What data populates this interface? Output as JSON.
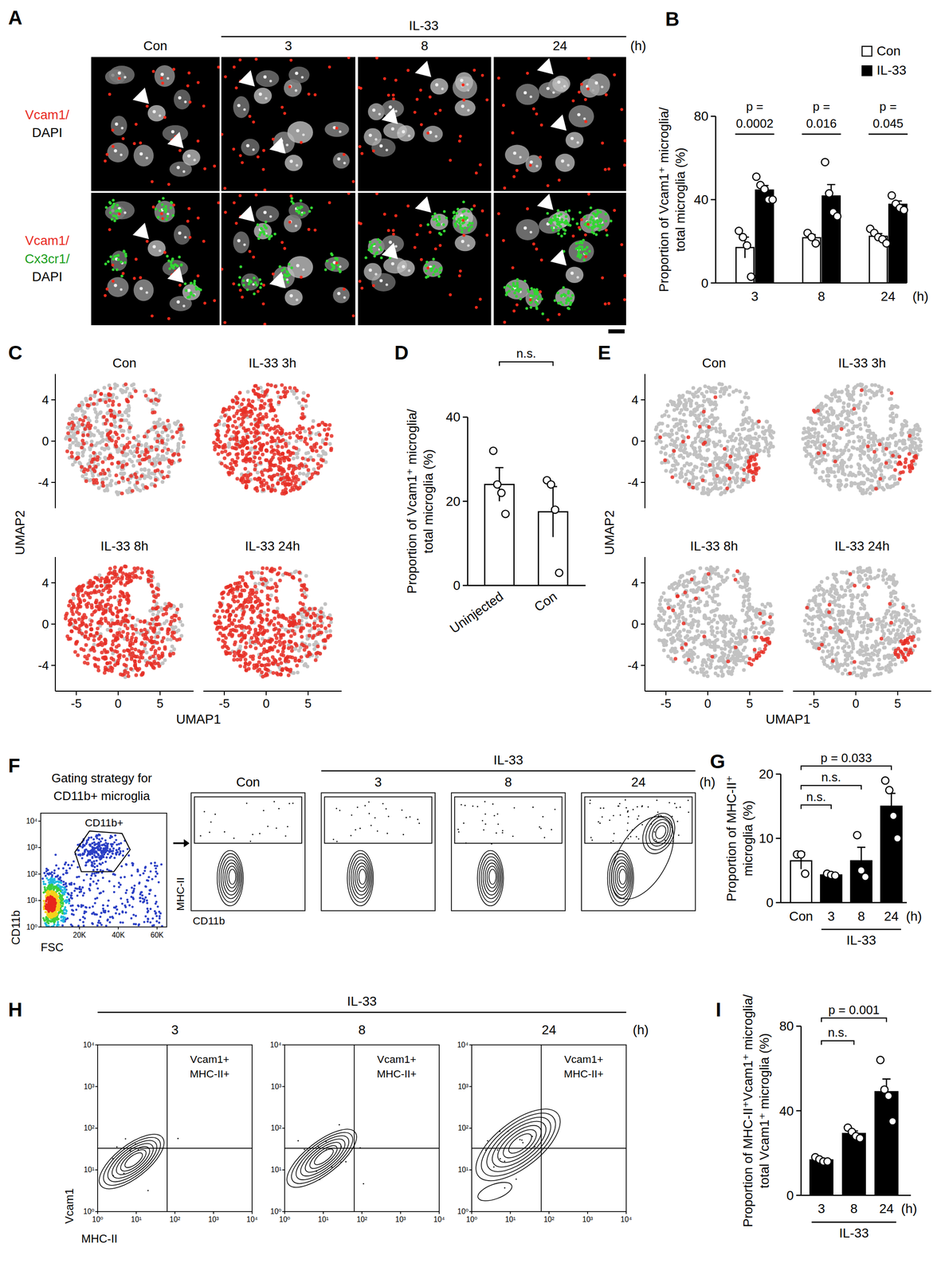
{
  "panel_letters": [
    "A",
    "B",
    "C",
    "D",
    "E",
    "F",
    "G",
    "H",
    "I"
  ],
  "chart_data": [
    {
      "type": "bar",
      "panel": "B",
      "categories": [
        "3",
        "8",
        "24"
      ],
      "unit": "(h)",
      "ylabel": "Proportion of Vcam1⁺ microglia/ total microglia (%)",
      "ylim": [
        0,
        80
      ],
      "yticks": [
        0,
        40,
        80
      ],
      "legend": "top-right",
      "series": [
        {
          "name": "Con",
          "color": "#ffffff",
          "values": [
            17,
            21.7,
            22.4
          ],
          "errors": [
            5,
            1.5,
            1.3
          ],
          "points": [
            [
              25,
              22,
              18,
              3
            ],
            [
              24,
              22,
              19
            ],
            [
              26,
              24,
              22,
              21,
              19
            ]
          ]
        },
        {
          "name": "IL-33",
          "color": "#000000",
          "values": [
            44.6,
            41.75,
            37.75
          ],
          "errors": [
            2.2,
            5.5,
            1.6
          ],
          "points": [
            [
              51,
              47,
              45,
              40,
              40
            ],
            [
              58,
              43,
              34,
              32
            ],
            [
              42,
              38,
              36,
              35
            ]
          ]
        }
      ],
      "annotations": [
        {
          "text": "p = 0.0002",
          "category": "3"
        },
        {
          "text": "p = 0.016",
          "category": "8"
        },
        {
          "text": "p = 0.045",
          "category": "24"
        }
      ]
    },
    {
      "type": "bar",
      "panel": "D",
      "categories": [
        "Uninjected",
        "Con"
      ],
      "ylabel": "Proportion of Vcam1⁺ microglia/ total microglia (%)",
      "ylim": [
        0,
        40
      ],
      "yticks": [
        0,
        20,
        40
      ],
      "colors": [
        "#ffffff",
        "#ffffff"
      ],
      "values": [
        24,
        17.5
      ],
      "errors": [
        4,
        6
      ],
      "points": [
        [
          32,
          24,
          22,
          17
        ],
        [
          25,
          24,
          18,
          3
        ]
      ],
      "annotations": [
        {
          "text": "n.s.",
          "from": "Uninjected",
          "to": "Con"
        }
      ]
    },
    {
      "type": "bar",
      "panel": "G",
      "categories": [
        "Con",
        "3",
        "8",
        "24"
      ],
      "group": {
        "label": "IL-33",
        "from": "3",
        "to": "24"
      },
      "unit": "(h)",
      "ylabel": "Proportion of MHC-II⁺ microglia (%)",
      "ylim": [
        0,
        20
      ],
      "yticks": [
        0,
        10,
        20
      ],
      "colors": [
        "#ffffff",
        "#000000",
        "#000000",
        "#000000"
      ],
      "values": [
        6.5,
        4.3,
        6.5,
        15
      ],
      "errors": [
        1.3,
        0.15,
        2.1,
        2
      ],
      "points": [
        [
          7.5,
          7.5,
          4.5
        ],
        [
          4.5,
          4.3,
          4.2
        ],
        [
          10.5,
          5,
          4
        ],
        [
          19,
          17.5,
          13.5,
          10
        ]
      ],
      "annotations": [
        {
          "text": "p = 0.033",
          "from": "Con",
          "to": "24"
        },
        {
          "text": "n.s.",
          "from": "Con",
          "to": "8"
        },
        {
          "text": "n.s.",
          "from": "Con",
          "to": "3"
        }
      ]
    },
    {
      "type": "bar",
      "panel": "I",
      "categories": [
        "3",
        "8",
        "24"
      ],
      "group": {
        "label": "IL-33",
        "from": "3",
        "to": "24"
      },
      "unit": "(h)",
      "ylabel": "Proportion of MHC-II⁺Vcam1⁺ microglia/ total Vcam1⁺ microglia (%)",
      "ylim": [
        0,
        80
      ],
      "yticks": [
        0,
        40,
        80
      ],
      "colors": [
        "#000000",
        "#000000",
        "#000000"
      ],
      "values": [
        16.75,
        29.25,
        49
      ],
      "errors": [
        0.6,
        1.2,
        6
      ],
      "points": [
        [
          18,
          17,
          16,
          16
        ],
        [
          32,
          30,
          28,
          27
        ],
        [
          64,
          50,
          47,
          35
        ]
      ],
      "annotations": [
        {
          "text": "p = 0.001",
          "from": "3",
          "to": "24"
        },
        {
          "text": "n.s.",
          "from": "3",
          "to": "8"
        }
      ]
    }
  ],
  "images": {
    "A": {
      "columns": [
        "Con",
        "3",
        "8",
        "24"
      ],
      "group": "IL-33",
      "unit": "(h)",
      "rows": [
        [
          {
            "text": "Vcam1/",
            "color": "#e8281e"
          },
          {
            "text": "DAPI",
            "color": "#000000"
          }
        ],
        [
          {
            "text": "Vcam1/",
            "color": "#e8281e"
          },
          {
            "text": "Cx3cr1/",
            "color": "#1a9e1a"
          },
          {
            "text": "DAPI",
            "color": "#000000"
          }
        ]
      ]
    },
    "C": {
      "type": "scatter",
      "titles": [
        "Con",
        "IL-33 3h",
        "IL-33 8h",
        "IL-33 24h"
      ],
      "xlabel": "UMAP1",
      "ylabel": "UMAP2",
      "xlim": [
        -7.5,
        9
      ],
      "ylim": [
        -6.5,
        6.5
      ],
      "xticks": [
        -5,
        0,
        5
      ],
      "yticks": [
        -4,
        0,
        4
      ]
    },
    "E": {
      "type": "scatter",
      "titles": [
        "Con",
        "IL-33 3h",
        "IL-33 8h",
        "IL-33 24h"
      ],
      "xlabel": "UMAP1",
      "ylabel": "UMAP2",
      "xlim": [
        -7.5,
        9
      ],
      "ylim": [
        -6.5,
        6.5
      ],
      "xticks": [
        -5,
        0,
        5
      ],
      "yticks": [
        -4,
        0,
        4
      ]
    },
    "F": {
      "title": "Gating strategy for CD11b+ microglia",
      "gate": "CD11b+",
      "xlabel": "FSC",
      "ylabel": "CD11b",
      "xlim": [
        0,
        65000
      ],
      "xticks": [
        {
          "value": 20000,
          "label": "20K"
        },
        {
          "value": 40000,
          "label": "40K"
        },
        {
          "value": 60000,
          "label": "60K"
        }
      ],
      "log": "y",
      "ylim": [
        1,
        20000
      ],
      "yticks": [
        {
          "value": 1,
          "label": "10⁰"
        },
        {
          "value": 10,
          "label": "10¹"
        },
        {
          "value": 100,
          "label": "10²"
        },
        {
          "value": 1000,
          "label": "10³"
        },
        {
          "value": 10000,
          "label": "10⁴"
        }
      ],
      "columns": [
        "Con",
        "3",
        "8",
        "24"
      ],
      "group": "IL-33",
      "unit": "(h)",
      "contour_xlabel": "CD11b",
      "contour_ylabel": "MHC-II"
    },
    "H": {
      "columns": [
        "3",
        "8",
        "24"
      ],
      "group": "IL-33",
      "unit": "(h)",
      "gate": "Vcam1+ MHC-II+",
      "xlabel": "MHC-II",
      "ylabel": "Vcam1",
      "log": true,
      "xlim": [
        1,
        10000
      ],
      "ylim": [
        1,
        10000
      ],
      "xticks": [
        {
          "value": 1,
          "label": "10⁰"
        },
        {
          "value": 10,
          "label": "10¹"
        },
        {
          "value": 100,
          "label": "10²"
        },
        {
          "value": 1000,
          "label": "10³"
        },
        {
          "value": 10000,
          "label": "10⁴"
        }
      ],
      "yticks": [
        {
          "value": 1,
          "label": "10⁰"
        },
        {
          "value": 10,
          "label": "10¹"
        },
        {
          "value": 100,
          "label": "10²"
        },
        {
          "value": 1000,
          "label": "10³"
        },
        {
          "value": 10000,
          "label": "10⁴"
        }
      ]
    }
  }
}
